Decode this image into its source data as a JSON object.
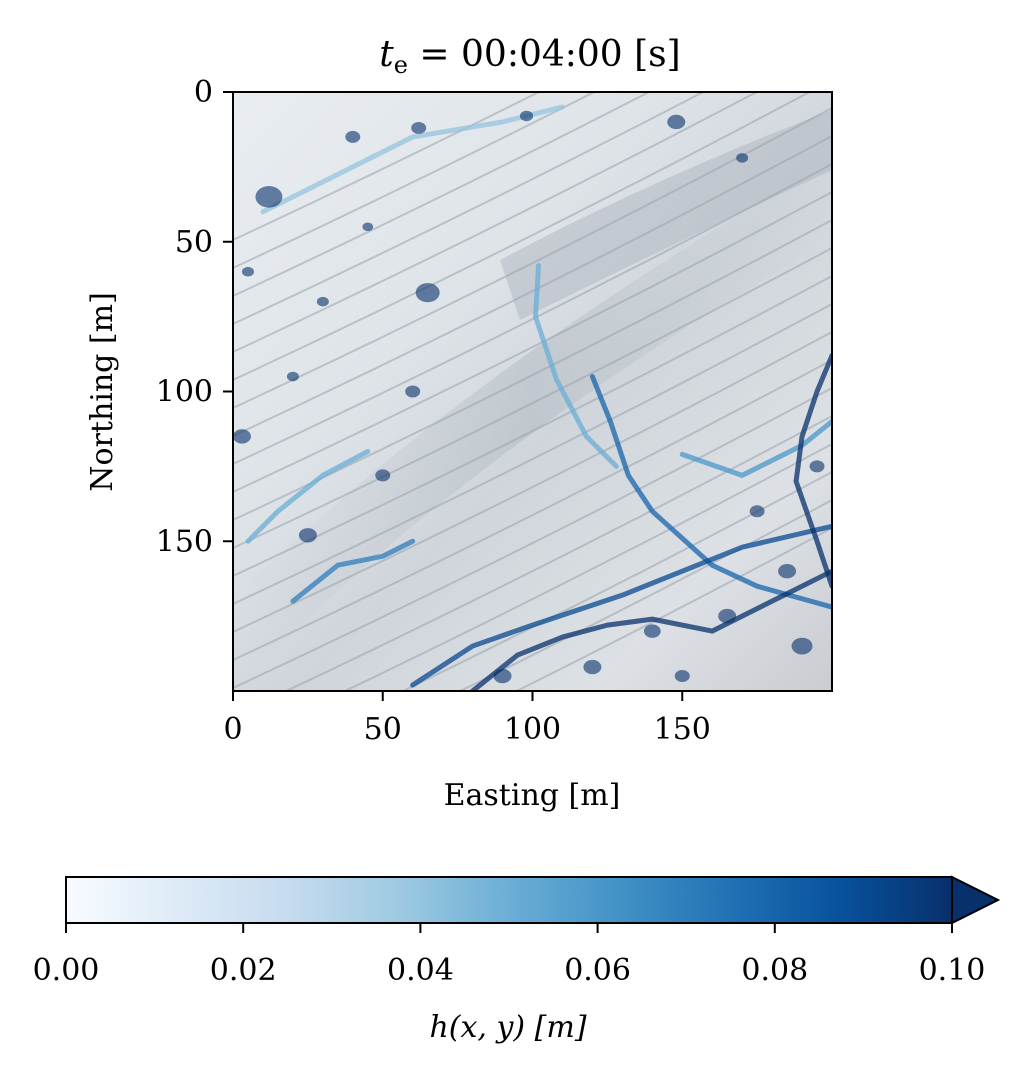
{
  "chart_data": {
    "type": "heatmap",
    "title": {
      "var": "t",
      "sub": "e",
      "rest": " = 00:04:00 [s]"
    },
    "xlabel": "Easting [m]",
    "ylabel": "Northing [m]",
    "xlim": [
      0,
      200
    ],
    "ylim": [
      0,
      200
    ],
    "y_inverted": true,
    "xticks": [
      {
        "value": 0,
        "label": "0"
      },
      {
        "value": 50,
        "label": "50"
      },
      {
        "value": 100,
        "label": "100"
      },
      {
        "value": 150,
        "label": "150"
      }
    ],
    "yticks": [
      {
        "value": 0,
        "label": "0"
      },
      {
        "value": 50,
        "label": "50"
      },
      {
        "value": 100,
        "label": "100"
      },
      {
        "value": 150,
        "label": "150"
      }
    ],
    "colorbar": {
      "label": "h(x, y) [m]",
      "vmin": 0.0,
      "vmax": 0.1,
      "extend": "max",
      "colormap": "Blues",
      "ticks": [
        {
          "value": 0.0,
          "label": "0.00"
        },
        {
          "value": 0.02,
          "label": "0.02"
        },
        {
          "value": 0.04,
          "label": "0.04"
        },
        {
          "value": 0.06,
          "label": "0.06"
        },
        {
          "value": 0.08,
          "label": "0.08"
        },
        {
          "value": 0.1,
          "label": "0.10"
        }
      ],
      "colors": [
        "#f7fbff",
        "#deebf7",
        "#c6dbef",
        "#9ecae1",
        "#6baed6",
        "#4292c6",
        "#2171b5",
        "#08519c",
        "#08306b"
      ],
      "extend_color": "#08306b"
    },
    "water_channels": [
      {
        "name": "main-diagonal-channel",
        "points": [
          [
            120,
            95
          ],
          [
            126,
            110
          ],
          [
            132,
            128
          ],
          [
            140,
            140
          ],
          [
            160,
            158
          ],
          [
            175,
            165
          ],
          [
            200,
            172
          ]
        ],
        "depth": 0.08
      },
      {
        "name": "upper-curve-channel",
        "points": [
          [
            102,
            58
          ],
          [
            101,
            75
          ],
          [
            108,
            96
          ],
          [
            118,
            115
          ],
          [
            128,
            125
          ]
        ],
        "depth": 0.05
      },
      {
        "name": "southern-channel-1",
        "points": [
          [
            60,
            198
          ],
          [
            80,
            185
          ],
          [
            100,
            178
          ],
          [
            130,
            168
          ],
          [
            150,
            160
          ],
          [
            170,
            152
          ],
          [
            200,
            145
          ]
        ],
        "depth": 0.09
      },
      {
        "name": "southern-channel-2",
        "points": [
          [
            80,
            200
          ],
          [
            95,
            188
          ],
          [
            110,
            182
          ],
          [
            125,
            178
          ],
          [
            140,
            176
          ],
          [
            160,
            180
          ],
          [
            180,
            170
          ],
          [
            200,
            160
          ]
        ],
        "depth": 0.1
      },
      {
        "name": "northeast-channel",
        "points": [
          [
            150,
            121
          ],
          [
            170,
            128
          ],
          [
            190,
            118
          ],
          [
            200,
            110
          ]
        ],
        "depth": 0.06
      },
      {
        "name": "west-rill",
        "points": [
          [
            20,
            170
          ],
          [
            35,
            158
          ],
          [
            50,
            155
          ],
          [
            60,
            150
          ]
        ],
        "depth": 0.07
      },
      {
        "name": "west-rill-2",
        "points": [
          [
            5,
            150
          ],
          [
            15,
            140
          ],
          [
            30,
            128
          ],
          [
            45,
            120
          ]
        ],
        "depth": 0.05
      },
      {
        "name": "north-rill",
        "points": [
          [
            10,
            40
          ],
          [
            30,
            30
          ],
          [
            60,
            15
          ],
          [
            90,
            10
          ],
          [
            110,
            5
          ]
        ],
        "depth": 0.04
      },
      {
        "name": "east-edge-channel",
        "points": [
          [
            200,
            88
          ],
          [
            195,
            100
          ],
          [
            190,
            115
          ],
          [
            188,
            130
          ],
          [
            195,
            150
          ],
          [
            200,
            165
          ]
        ],
        "depth": 0.1
      }
    ],
    "ponds": [
      {
        "x": 12,
        "y": 35,
        "r": 4.5,
        "depth": 0.1
      },
      {
        "x": 65,
        "y": 67,
        "r": 4,
        "depth": 0.1
      },
      {
        "x": 62,
        "y": 12,
        "r": 2.5,
        "depth": 0.1
      },
      {
        "x": 148,
        "y": 10,
        "r": 3,
        "depth": 0.1
      },
      {
        "x": 40,
        "y": 15,
        "r": 2.5,
        "depth": 0.1
      },
      {
        "x": 98,
        "y": 8,
        "r": 2.2,
        "depth": 0.1
      },
      {
        "x": 25,
        "y": 148,
        "r": 3,
        "depth": 0.1
      },
      {
        "x": 50,
        "y": 128,
        "r": 2.5,
        "depth": 0.1
      },
      {
        "x": 60,
        "y": 100,
        "r": 2.5,
        "depth": 0.1
      },
      {
        "x": 3,
        "y": 115,
        "r": 3,
        "depth": 0.1
      },
      {
        "x": 190,
        "y": 185,
        "r": 3.5,
        "depth": 0.1
      },
      {
        "x": 165,
        "y": 175,
        "r": 3,
        "depth": 0.1
      },
      {
        "x": 140,
        "y": 180,
        "r": 2.8,
        "depth": 0.1
      },
      {
        "x": 120,
        "y": 192,
        "r": 3,
        "depth": 0.1
      },
      {
        "x": 90,
        "y": 195,
        "r": 3,
        "depth": 0.1
      },
      {
        "x": 175,
        "y": 140,
        "r": 2.5,
        "depth": 0.1
      },
      {
        "x": 185,
        "y": 160,
        "r": 3,
        "depth": 0.1
      },
      {
        "x": 150,
        "y": 195,
        "r": 2.5,
        "depth": 0.1
      },
      {
        "x": 30,
        "y": 70,
        "r": 2,
        "depth": 0.1
      },
      {
        "x": 20,
        "y": 95,
        "r": 2,
        "depth": 0.1
      },
      {
        "x": 170,
        "y": 22,
        "r": 2,
        "depth": 0.1
      },
      {
        "x": 5,
        "y": 60,
        "r": 2,
        "depth": 0.1
      },
      {
        "x": 45,
        "y": 45,
        "r": 1.8,
        "depth": 0.1
      },
      {
        "x": 195,
        "y": 125,
        "r": 2.5,
        "depth": 0.1
      }
    ]
  }
}
